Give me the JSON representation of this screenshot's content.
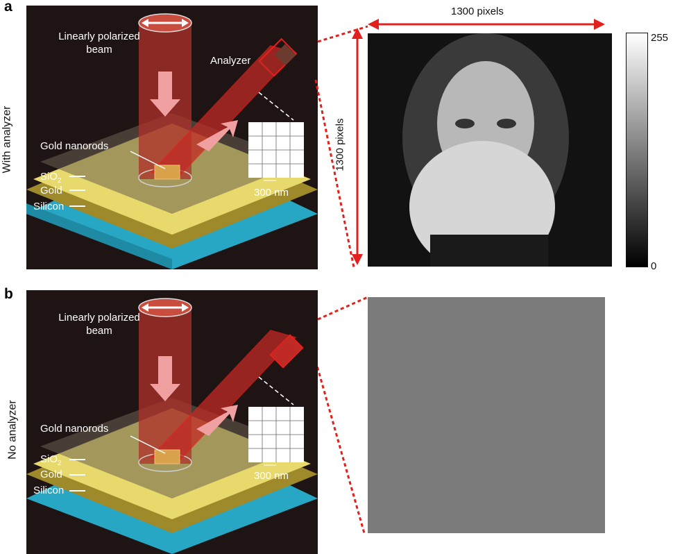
{
  "panels": {
    "a": {
      "letter": "a",
      "side_label": "With analyzer",
      "beam_label": "Linearly polarized\nbeam",
      "analyzer_label": "Analyzer",
      "nanorods_label": "Gold nanorods",
      "layer_sio2": "SiO",
      "layer_sio2_sub": "2",
      "layer_gold": "Gold",
      "layer_silicon": "Silicon",
      "scale_label": "300 nm",
      "width_label": "1300 pixels",
      "height_label": "1300 pixels"
    },
    "b": {
      "letter": "b",
      "side_label": "No analyzer",
      "beam_label": "Linearly polarized\nbeam",
      "nanorods_label": "Gold nanorods",
      "layer_sio2": "SiO",
      "layer_sio2_sub": "2",
      "layer_gold": "Gold",
      "layer_silicon": "Silicon",
      "scale_label": "300 nm"
    }
  },
  "colorbar": {
    "max_label": "255",
    "min_label": "0"
  },
  "colors": {
    "beam": "#b0302a",
    "red_lines": "#e0211d",
    "gold_layer": "#e8d96c",
    "silicon_layer": "#27a7c4",
    "background_scene": "#1f1414"
  }
}
